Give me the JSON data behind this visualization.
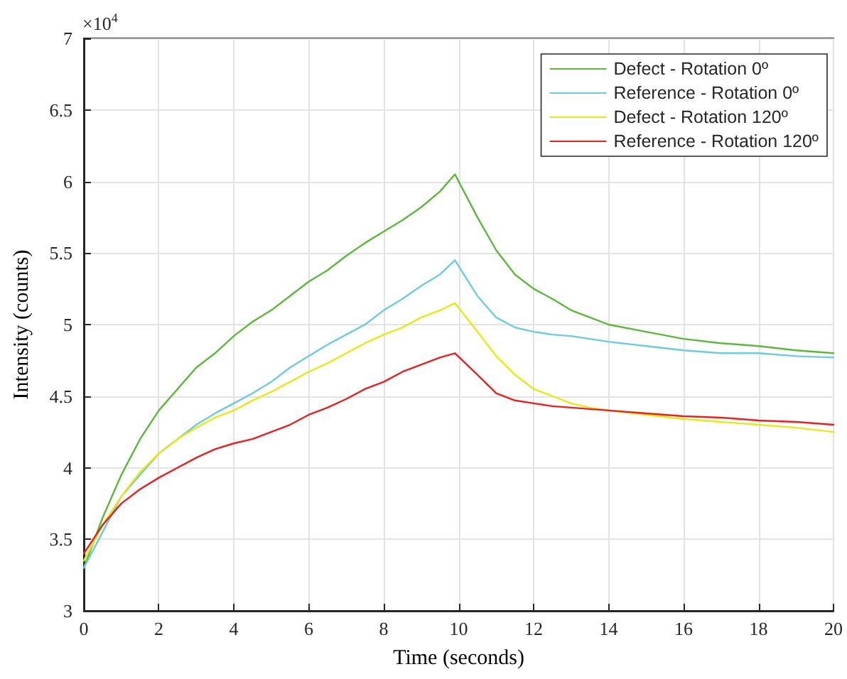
{
  "chart_data": {
    "type": "line",
    "xlabel": "Time (seconds)",
    "ylabel": "Intensity (counts)",
    "annotations": [
      "×10$^{4}$"
    ],
    "x": [
      0,
      0.5,
      1,
      1.5,
      2,
      2.5,
      3,
      3.5,
      4,
      4.5,
      5,
      5.5,
      6,
      6.5,
      7,
      7.5,
      8,
      8.5,
      9,
      9.5,
      9.9,
      10.5,
      11,
      11.5,
      12,
      12.5,
      13,
      13.5,
      14,
      15,
      16,
      17,
      18,
      19,
      20
    ],
    "series": [
      {
        "name": "Defect - Rotation 0º",
        "color": "#5cb83a",
        "values": [
          3.3,
          3.65,
          3.95,
          4.2,
          4.4,
          4.55,
          4.7,
          4.8,
          4.92,
          5.02,
          5.1,
          5.2,
          5.3,
          5.38,
          5.48,
          5.57,
          5.65,
          5.73,
          5.82,
          5.93,
          6.05,
          5.75,
          5.52,
          5.35,
          5.25,
          5.18,
          5.1,
          5.05,
          5.0,
          4.95,
          4.9,
          4.87,
          4.85,
          4.82,
          4.8
        ]
      },
      {
        "name": "Reference - Rotation 0º",
        "color": "#6ccbdc",
        "values": [
          3.3,
          3.55,
          3.8,
          3.95,
          4.1,
          4.2,
          4.3,
          4.38,
          4.45,
          4.52,
          4.6,
          4.7,
          4.78,
          4.86,
          4.93,
          5.0,
          5.1,
          5.18,
          5.27,
          5.35,
          5.45,
          5.2,
          5.05,
          4.98,
          4.95,
          4.93,
          4.92,
          4.9,
          4.88,
          4.85,
          4.82,
          4.8,
          4.8,
          4.78,
          4.77
        ]
      },
      {
        "name": "Defect - Rotation 120º",
        "color": "#e8e816",
        "values": [
          3.35,
          3.6,
          3.8,
          3.97,
          4.1,
          4.2,
          4.28,
          4.35,
          4.4,
          4.47,
          4.53,
          4.6,
          4.67,
          4.73,
          4.8,
          4.87,
          4.93,
          4.98,
          5.05,
          5.1,
          5.15,
          4.95,
          4.78,
          4.65,
          4.55,
          4.5,
          4.45,
          4.42,
          4.4,
          4.37,
          4.34,
          4.32,
          4.3,
          4.28,
          4.25
        ]
      },
      {
        "name": "Reference - Rotation 120º",
        "color": "#e8201f",
        "values": [
          3.4,
          3.6,
          3.75,
          3.85,
          3.93,
          4.0,
          4.07,
          4.13,
          4.17,
          4.2,
          4.25,
          4.3,
          4.37,
          4.42,
          4.48,
          4.55,
          4.6,
          4.67,
          4.72,
          4.77,
          4.8,
          4.65,
          4.52,
          4.47,
          4.45,
          4.43,
          4.42,
          4.41,
          4.4,
          4.38,
          4.36,
          4.35,
          4.33,
          4.32,
          4.3
        ]
      }
    ],
    "xlim": [
      0,
      20
    ],
    "xticks": [
      0,
      2,
      4,
      6,
      8,
      10,
      12,
      14,
      16,
      18,
      20
    ],
    "ylim": [
      3,
      7
    ],
    "yticks": [
      3,
      3.5,
      4,
      4.5,
      5,
      5.5,
      6,
      6.5,
      7
    ],
    "grid": true,
    "legend": "top right",
    "marker": "none",
    "line_style": "solid"
  }
}
